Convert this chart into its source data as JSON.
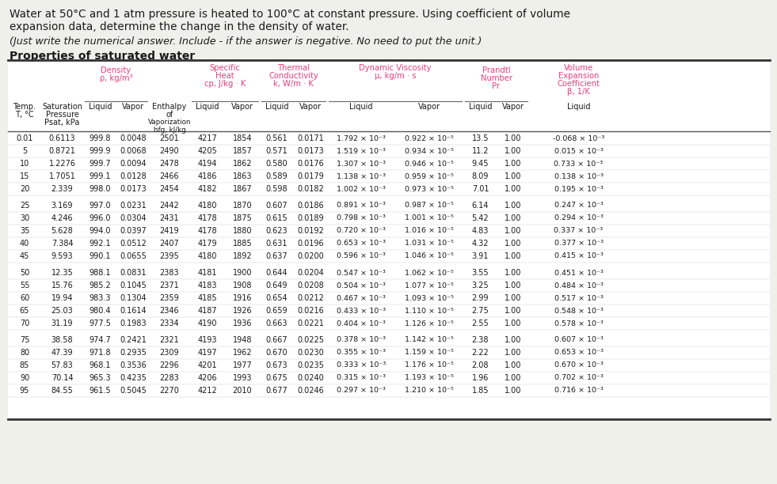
{
  "title_line1": "Water at 50°C and 1 atm pressure is heated to 100°C at constant pressure. Using coefficient of volume",
  "title_line2": "expansion data, determine the change in the density of water.",
  "subtitle_text": "(Just write the numerical answer. Include - if the answer is negative. No need to put the unit.)",
  "table_title": "Properties of saturated water",
  "header_color": "#e8407a",
  "text_color": "#1a1a1a",
  "bg_color": "#f0f0eb",
  "table_bg": "#ffffff",
  "data": [
    [
      "0.01",
      "0.6113",
      "999.8",
      "0.0048",
      "2501",
      "4217",
      "1854",
      "0.561",
      "0.0171",
      "1.792 × 10⁻³",
      "0.922 × 10⁻⁵",
      "13.5",
      "1.00",
      "-0.068 × 10⁻³"
    ],
    [
      "5",
      "0.8721",
      "999.9",
      "0.0068",
      "2490",
      "4205",
      "1857",
      "0.571",
      "0.0173",
      "1.519 × 10⁻³",
      "0.934 × 10⁻⁵",
      "11.2",
      "1.00",
      "0.015 × 10⁻³"
    ],
    [
      "10",
      "1.2276",
      "999.7",
      "0.0094",
      "2478",
      "4194",
      "1862",
      "0.580",
      "0.0176",
      "1.307 × 10⁻³",
      "0.946 × 10⁻⁵",
      "9.45",
      "1.00",
      "0.733 × 10⁻³"
    ],
    [
      "15",
      "1.7051",
      "999.1",
      "0.0128",
      "2466",
      "4186",
      "1863",
      "0.589",
      "0.0179",
      "1.138 × 10⁻³",
      "0.959 × 10⁻⁵",
      "8.09",
      "1.00",
      "0.138 × 10⁻³"
    ],
    [
      "20",
      "2.339",
      "998.0",
      "0.0173",
      "2454",
      "4182",
      "1867",
      "0.598",
      "0.0182",
      "1.002 × 10⁻³",
      "0.973 × 10⁻⁵",
      "7.01",
      "1.00",
      "0.195 × 10⁻³"
    ],
    [
      "25",
      "3.169",
      "997.0",
      "0.0231",
      "2442",
      "4180",
      "1870",
      "0.607",
      "0.0186",
      "0.891 × 10⁻³",
      "0.987 × 10⁻⁵",
      "6.14",
      "1.00",
      "0.247 × 10⁻³"
    ],
    [
      "30",
      "4.246",
      "996.0",
      "0.0304",
      "2431",
      "4178",
      "1875",
      "0.615",
      "0.0189",
      "0.798 × 10⁻³",
      "1.001 × 10⁻⁵",
      "5.42",
      "1.00",
      "0.294 × 10⁻³"
    ],
    [
      "35",
      "5.628",
      "994.0",
      "0.0397",
      "2419",
      "4178",
      "1880",
      "0.623",
      "0.0192",
      "0.720 × 10⁻³",
      "1.016 × 10⁻⁵",
      "4.83",
      "1.00",
      "0.337 × 10⁻³"
    ],
    [
      "40",
      "7.384",
      "992.1",
      "0.0512",
      "2407",
      "4179",
      "1885",
      "0.631",
      "0.0196",
      "0.653 × 10⁻³",
      "1.031 × 10⁻⁵",
      "4.32",
      "1.00",
      "0.377 × 10⁻³"
    ],
    [
      "45",
      "9.593",
      "990.1",
      "0.0655",
      "2395",
      "4180",
      "1892",
      "0.637",
      "0.0200",
      "0.596 × 10⁻³",
      "1.046 × 10⁻⁵",
      "3.91",
      "1.00",
      "0.415 × 10⁻³"
    ],
    [
      "50",
      "12.35",
      "988.1",
      "0.0831",
      "2383",
      "4181",
      "1900",
      "0.644",
      "0.0204",
      "0.547 × 10⁻³",
      "1.062 × 10⁻⁵",
      "3.55",
      "1.00",
      "0.451 × 10⁻³"
    ],
    [
      "55",
      "15.76",
      "985.2",
      "0.1045",
      "2371",
      "4183",
      "1908",
      "0.649",
      "0.0208",
      "0.504 × 10⁻³",
      "1.077 × 10⁻⁵",
      "3.25",
      "1.00",
      "0.484 × 10⁻³"
    ],
    [
      "60",
      "19.94",
      "983.3",
      "0.1304",
      "2359",
      "4185",
      "1916",
      "0.654",
      "0.0212",
      "0.467 × 10⁻³",
      "1.093 × 10⁻⁵",
      "2.99",
      "1.00",
      "0.517 × 10⁻³"
    ],
    [
      "65",
      "25.03",
      "980.4",
      "0.1614",
      "2346",
      "4187",
      "1926",
      "0.659",
      "0.0216",
      "0.433 × 10⁻³",
      "1.110 × 10⁻⁵",
      "2.75",
      "1.00",
      "0.548 × 10⁻³"
    ],
    [
      "70",
      "31.19",
      "977.5",
      "0.1983",
      "2334",
      "4190",
      "1936",
      "0.663",
      "0.0221",
      "0.404 × 10⁻³",
      "1.126 × 10⁻⁵",
      "2.55",
      "1.00",
      "0.578 × 10⁻³"
    ],
    [
      "75",
      "38.58",
      "974.7",
      "0.2421",
      "2321",
      "4193",
      "1948",
      "0.667",
      "0.0225",
      "0.378 × 10⁻³",
      "1.142 × 10⁻⁵",
      "2.38",
      "1.00",
      "0.607 × 10⁻³"
    ],
    [
      "80",
      "47.39",
      "971.8",
      "0.2935",
      "2309",
      "4197",
      "1962",
      "0.670",
      "0.0230",
      "0.355 × 10⁻³",
      "1.159 × 10⁻⁵",
      "2.22",
      "1.00",
      "0.653 × 10⁻³"
    ],
    [
      "85",
      "57.83",
      "968.1",
      "0.3536",
      "2296",
      "4201",
      "1977",
      "0.673",
      "0.0235",
      "0.333 × 10⁻³",
      "1.176 × 10⁻⁵",
      "2.08",
      "1.00",
      "0.670 × 10⁻³"
    ],
    [
      "90",
      "70.14",
      "965.3",
      "0.4235",
      "2283",
      "4206",
      "1993",
      "0.675",
      "0.0240",
      "0.315 × 10⁻³",
      "1.193 × 10⁻⁵",
      "1.96",
      "1.00",
      "0.702 × 10⁻³"
    ],
    [
      "95",
      "84.55",
      "961.5",
      "0.5045",
      "2270",
      "4212",
      "2010",
      "0.677",
      "0.0246",
      "0.297 × 10⁻³",
      "1.210 × 10⁻⁵",
      "1.85",
      "1.00",
      "0.716 × 10⁻³"
    ]
  ]
}
